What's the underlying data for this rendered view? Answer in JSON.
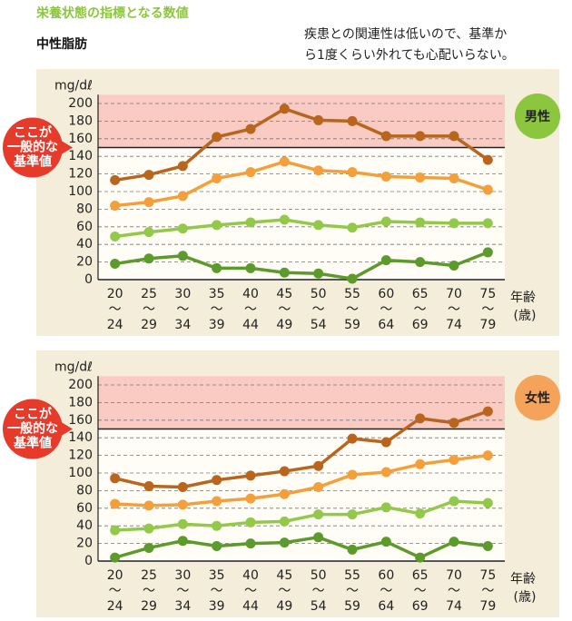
{
  "header": {
    "kicker": "栄養状態の指標となる数値",
    "title": "中性脂肪",
    "description": [
      "疾患との関連性は低いので、基準か",
      "ら1度くらい外れても心配いらない。"
    ]
  },
  "chart_data": [
    {
      "type": "line",
      "badge": "男性",
      "badge_color": "#8cc63f",
      "y_label": "mg/dℓ",
      "x_label": "年齢",
      "x_label_note": "(歳)",
      "reference_min": 150,
      "reference_note": [
        "ここが",
        "一般的な",
        "基準値"
      ],
      "categories": [
        "20〜24",
        "25〜29",
        "30〜34",
        "35〜39",
        "40〜44",
        "45〜49",
        "50〜54",
        "55〜59",
        "60〜64",
        "65〜69",
        "70〜74",
        "75〜79"
      ],
      "ylim": [
        0,
        210
      ],
      "yticks": [
        0,
        20,
        40,
        60,
        80,
        100,
        120,
        140,
        160,
        180,
        200
      ],
      "grid": true,
      "series": [
        {
          "color": "#b8651e",
          "values": [
            113,
            119,
            129,
            162,
            171,
            194,
            181,
            180,
            163,
            163,
            163,
            136
          ]
        },
        {
          "color": "#f3a03c",
          "values": [
            84,
            88,
            95,
            115,
            122,
            134,
            124,
            122,
            117,
            116,
            115,
            102
          ]
        },
        {
          "color": "#93c94a",
          "values": [
            49,
            54,
            58,
            62,
            65,
            68,
            62,
            59,
            66,
            65,
            64,
            64
          ]
        },
        {
          "color": "#5c9a2c",
          "values": [
            18,
            24,
            27,
            13,
            13,
            8,
            7,
            1,
            22,
            20,
            16,
            31
          ]
        }
      ]
    },
    {
      "type": "line",
      "badge": "女性",
      "badge_color": "#f5a35a",
      "y_label": "mg/dℓ",
      "x_label": "年齢",
      "x_label_note": "(歳)",
      "reference_min": 150,
      "reference_note": [
        "ここが",
        "一般的な",
        "基準値"
      ],
      "categories": [
        "20〜24",
        "25〜29",
        "30〜34",
        "35〜39",
        "40〜44",
        "45〜49",
        "50〜54",
        "55〜59",
        "60〜64",
        "65〜69",
        "70〜74",
        "75〜79"
      ],
      "ylim": [
        0,
        210
      ],
      "yticks": [
        0,
        20,
        40,
        60,
        80,
        100,
        120,
        140,
        160,
        180,
        200
      ],
      "grid": true,
      "series": [
        {
          "color": "#b8651e",
          "values": [
            94,
            85,
            84,
            92,
            97,
            102,
            108,
            139,
            135,
            162,
            157,
            170
          ]
        },
        {
          "color": "#f3a03c",
          "values": [
            65,
            63,
            64,
            68,
            71,
            76,
            84,
            98,
            101,
            110,
            115,
            120
          ]
        },
        {
          "color": "#93c94a",
          "values": [
            35,
            37,
            42,
            40,
            44,
            45,
            53,
            53,
            61,
            54,
            68,
            66
          ]
        },
        {
          "color": "#5c9a2c",
          "values": [
            4,
            15,
            23,
            17,
            20,
            21,
            27,
            13,
            22,
            4,
            22,
            17
          ]
        }
      ]
    }
  ]
}
